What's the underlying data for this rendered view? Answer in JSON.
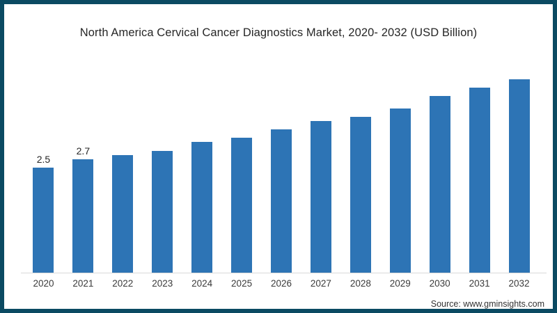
{
  "page": {
    "frame_border_color": "#0b4a62",
    "background_color": "#ffffff"
  },
  "title": "North America Cervical Cancer Diagnostics Market, 2020- 2032 (USD Billion)",
  "source": "Source: www.gminsights.com",
  "chart_data": {
    "type": "bar",
    "title": "North America Cervical Cancer Diagnostics Market, 2020- 2032 (USD Billion)",
    "unit": "USD Billion",
    "categories": [
      "2020",
      "2021",
      "2022",
      "2023",
      "2024",
      "2025",
      "2026",
      "2027",
      "2028",
      "2029",
      "2030",
      "2031",
      "2032"
    ],
    "values": [
      2.5,
      2.7,
      2.8,
      2.9,
      3.1,
      3.2,
      3.4,
      3.6,
      3.7,
      3.9,
      4.2,
      4.4,
      4.6
    ],
    "data_labels": [
      "2.5",
      "2.7",
      "",
      "",
      "",
      "",
      "",
      "",
      "",
      "",
      "",
      "",
      ""
    ],
    "bar_color": "#2d74b5",
    "axis_color": "#d9d9d9",
    "ylim": [
      0,
      5
    ],
    "grid": false,
    "legend_position": "none"
  }
}
